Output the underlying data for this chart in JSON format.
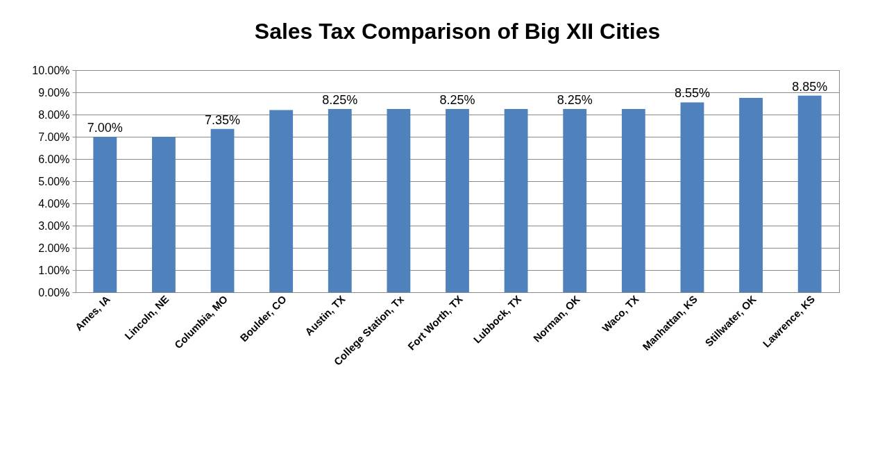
{
  "chart_data": {
    "type": "bar",
    "title": "Sales Tax Comparison of Big XII Cities",
    "categories": [
      "Ames, IA",
      "Lincoln, NE",
      "Columbia, MO",
      "Boulder, CO",
      "Austin, TX",
      "College Station, Tx",
      "Fort Worth, TX",
      "Lubbock, TX",
      "Norman, OK",
      "Waco, TX",
      "Manhattan, KS",
      "Stillwater, OK",
      "Lawrence, KS"
    ],
    "values": [
      7.0,
      7.0,
      7.35,
      8.2,
      8.25,
      8.25,
      8.25,
      8.25,
      8.25,
      8.25,
      8.55,
      8.75,
      8.85
    ],
    "value_labels": [
      "7.00%",
      null,
      "7.35%",
      null,
      "8.25%",
      null,
      "8.25%",
      null,
      "8.25%",
      null,
      "8.55%",
      null,
      "8.85%"
    ],
    "color": "#4f81bd",
    "ylim": [
      0,
      10
    ],
    "yticks": [
      {
        "value": 0,
        "label": "0.00%"
      },
      {
        "value": 1,
        "label": "1.00%"
      },
      {
        "value": 2,
        "label": "2.00%"
      },
      {
        "value": 3,
        "label": "3.00%"
      },
      {
        "value": 4,
        "label": "4.00%"
      },
      {
        "value": 5,
        "label": "5.00%"
      },
      {
        "value": 6,
        "label": "6.00%"
      },
      {
        "value": 7,
        "label": "7.00%"
      },
      {
        "value": 8,
        "label": "8.00%"
      },
      {
        "value": 9,
        "label": "9.00%"
      },
      {
        "value": 10,
        "label": "10.00%"
      }
    ],
    "grid": "y"
  }
}
